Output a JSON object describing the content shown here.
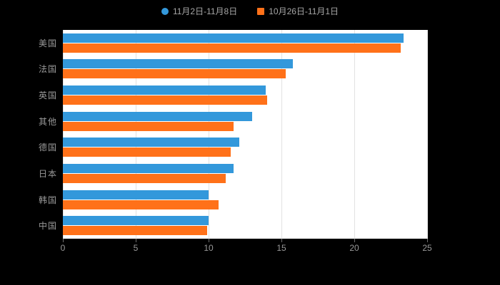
{
  "chart_data": {
    "type": "bar",
    "orientation": "horizontal",
    "title": "",
    "categories": [
      "美国",
      "法国",
      "英国",
      "其他",
      "德国",
      "日本",
      "韩国",
      "中国"
    ],
    "series": [
      {
        "name": "11月2日-11月8日",
        "marker": "circle",
        "color": "#3398DB",
        "values": [
          23.4,
          15.8,
          13.9,
          13.0,
          12.1,
          11.7,
          10.0,
          10.0
        ]
      },
      {
        "name": "10月26日-11月1日",
        "marker": "square",
        "color": "#FF7119",
        "values": [
          23.2,
          15.3,
          14.0,
          11.7,
          11.5,
          11.2,
          10.7,
          9.9
        ]
      }
    ],
    "xlim": [
      0,
      25
    ],
    "xticks": [
      "0",
      "5",
      "10",
      "15",
      "20",
      "25"
    ],
    "grid": true,
    "legend_position": "top",
    "colors": {
      "background": "#000000",
      "plot_background": "#ffffff",
      "gridline": "#e2e2e2",
      "axis_text": "#999999",
      "legend_text": "#a6a6a6"
    }
  }
}
